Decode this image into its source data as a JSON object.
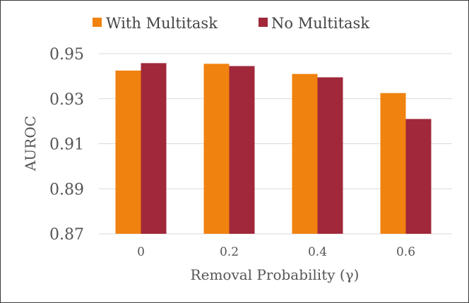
{
  "chart_data": {
    "type": "bar",
    "title": "",
    "xlabel": "Removal Probability (γ)",
    "ylabel": "AUROC",
    "categories": [
      "0",
      "0.2",
      "0.4",
      "0.6"
    ],
    "series": [
      {
        "name": "With Multitask",
        "color": "#F0820F",
        "values": [
          0.9425,
          0.9455,
          0.941,
          0.9325
        ]
      },
      {
        "name": "No Multitask",
        "color": "#A0283A",
        "values": [
          0.9458,
          0.9445,
          0.9395,
          0.921
        ]
      }
    ],
    "ylim": [
      0.87,
      0.95
    ],
    "yticks": [
      "0.87",
      "0.89",
      "0.91",
      "0.93",
      "0.95"
    ],
    "grid": true,
    "legend": "top"
  }
}
